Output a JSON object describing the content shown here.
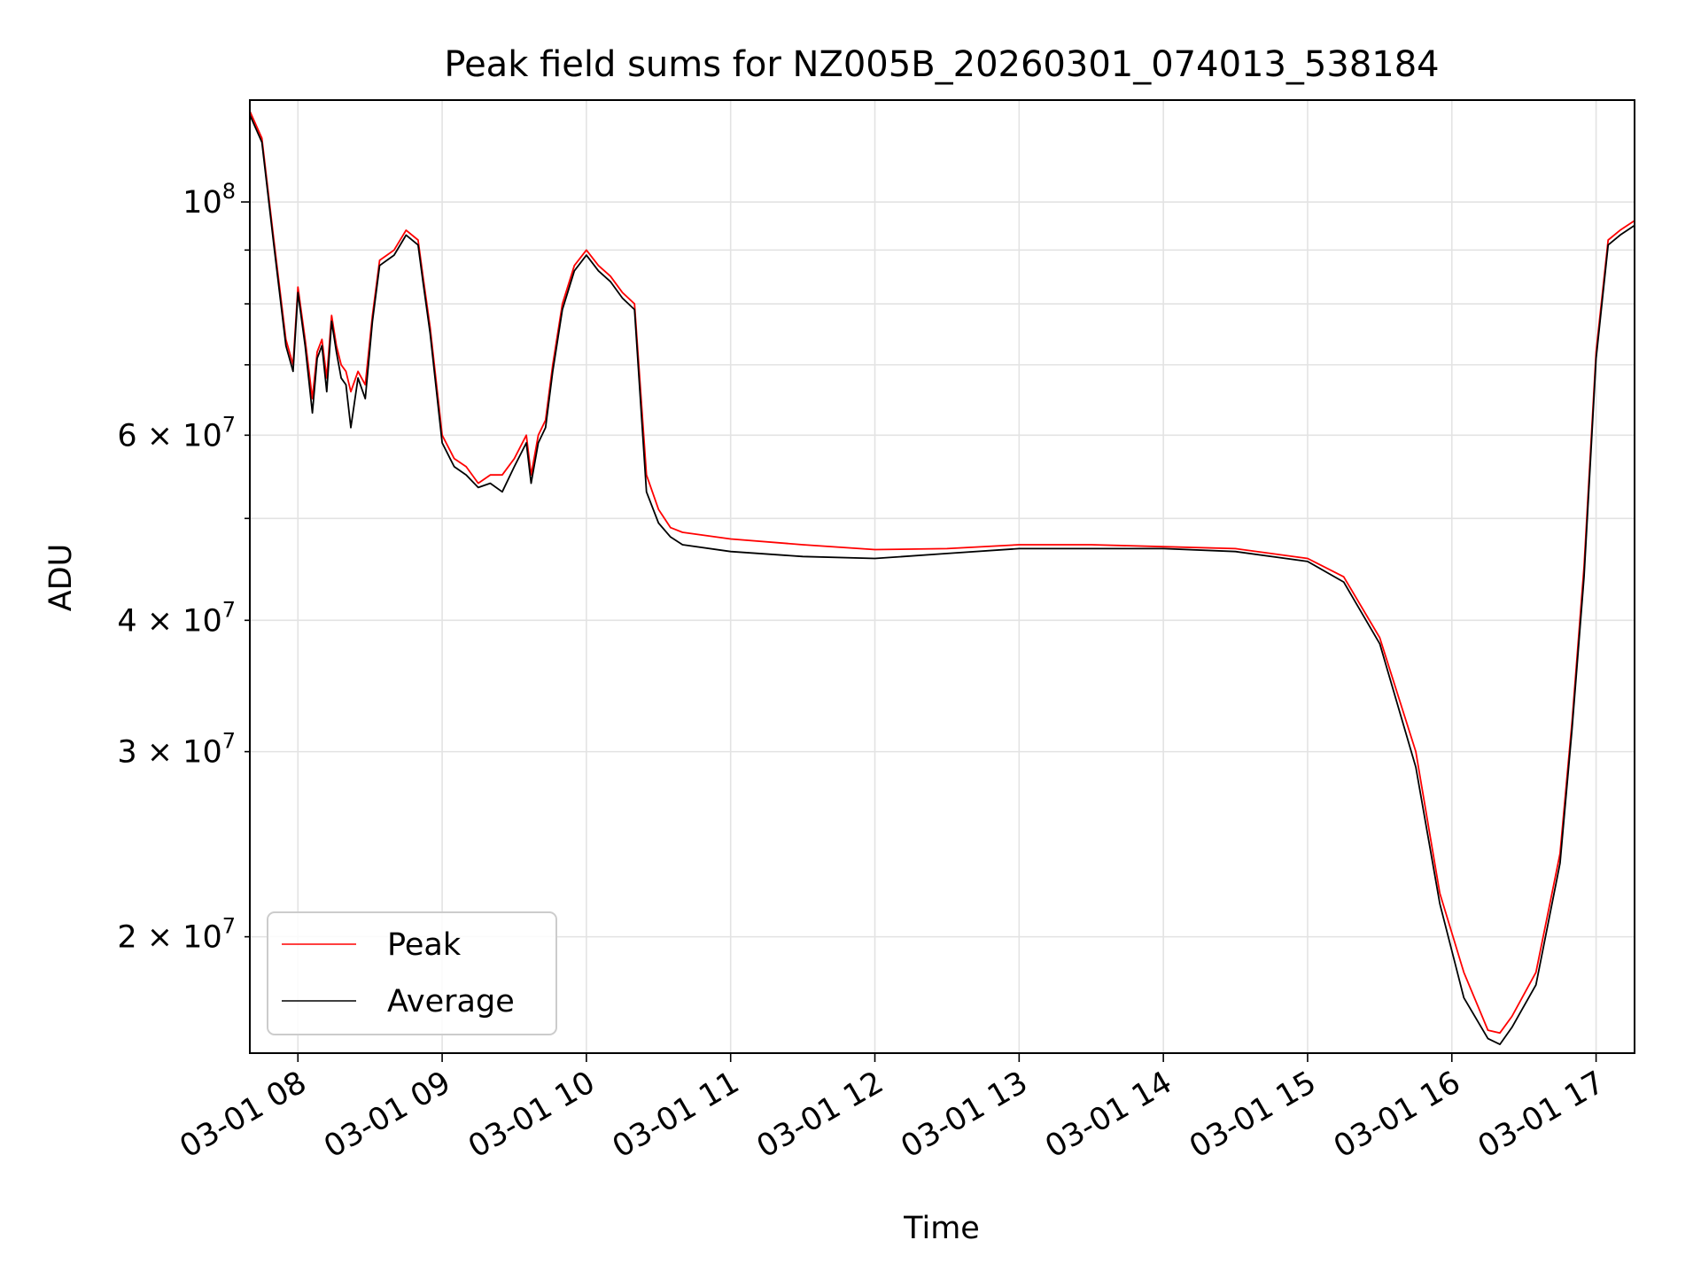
{
  "chart_data": {
    "type": "line",
    "title": "Peak field sums for NZ005B_20260301_074013_538184",
    "xlabel": "Time",
    "ylabel": "ADU",
    "x_scale": "time",
    "y_scale": "log",
    "xlim": [
      "2026-03-01 07:40",
      "2026-03-01 17:16"
    ],
    "ylim": [
      15500000,
      125000000
    ],
    "x_ticks": [
      "2026-03-01 08:00",
      "2026-03-01 09:00",
      "2026-03-01 10:00",
      "2026-03-01 11:00",
      "2026-03-01 12:00",
      "2026-03-01 13:00",
      "2026-03-01 14:00",
      "2026-03-01 15:00",
      "2026-03-01 16:00",
      "2026-03-01 17:00"
    ],
    "x_tick_labels": [
      "03-01 08",
      "03-01 09",
      "03-01 10",
      "03-01 11",
      "03-01 12",
      "03-01 13",
      "03-01 14",
      "03-01 15",
      "03-01 16",
      "03-01 17"
    ],
    "y_major_ticks": [
      100000000
    ],
    "y_major_labels": [
      [
        "10",
        "8"
      ]
    ],
    "y_minor_ticks": [
      20000000,
      30000000,
      40000000,
      60000000
    ],
    "y_minor_labels": [
      [
        "2 × 10",
        "7"
      ],
      [
        "3 × 10",
        "7"
      ],
      [
        "4 × 10",
        "7"
      ],
      [
        "6 × 10",
        "7"
      ]
    ],
    "y_grid_extra": [
      50000000,
      70000000,
      80000000,
      90000000
    ],
    "grid": true,
    "legend_position": "lower-left",
    "series": [
      {
        "name": "Peak",
        "color": "#ff0000",
        "x": [
          "2026-03-01 07:40",
          "2026-03-01 07:45",
          "2026-03-01 07:50",
          "2026-03-01 07:55",
          "2026-03-01 07:58",
          "2026-03-01 08:00",
          "2026-03-01 08:03",
          "2026-03-01 08:06",
          "2026-03-01 08:08",
          "2026-03-01 08:10",
          "2026-03-01 08:12",
          "2026-03-01 08:14",
          "2026-03-01 08:16",
          "2026-03-01 08:18",
          "2026-03-01 08:20",
          "2026-03-01 08:22",
          "2026-03-01 08:25",
          "2026-03-01 08:28",
          "2026-03-01 08:31",
          "2026-03-01 08:34",
          "2026-03-01 08:37",
          "2026-03-01 08:40",
          "2026-03-01 08:45",
          "2026-03-01 08:50",
          "2026-03-01 08:52",
          "2026-03-01 08:55",
          "2026-03-01 09:00",
          "2026-03-01 09:05",
          "2026-03-01 09:10",
          "2026-03-01 09:15",
          "2026-03-01 09:20",
          "2026-03-01 09:25",
          "2026-03-01 09:30",
          "2026-03-01 09:35",
          "2026-03-01 09:37",
          "2026-03-01 09:40",
          "2026-03-01 09:43",
          "2026-03-01 09:46",
          "2026-03-01 09:50",
          "2026-03-01 09:55",
          "2026-03-01 10:00",
          "2026-03-01 10:05",
          "2026-03-01 10:10",
          "2026-03-01 10:15",
          "2026-03-01 10:20",
          "2026-03-01 10:25",
          "2026-03-01 10:30",
          "2026-03-01 10:35",
          "2026-03-01 10:40",
          "2026-03-01 11:00",
          "2026-03-01 11:30",
          "2026-03-01 12:00",
          "2026-03-01 12:30",
          "2026-03-01 13:00",
          "2026-03-01 13:30",
          "2026-03-01 14:00",
          "2026-03-01 14:30",
          "2026-03-01 15:00",
          "2026-03-01 15:15",
          "2026-03-01 15:30",
          "2026-03-01 15:45",
          "2026-03-01 15:55",
          "2026-03-01 16:05",
          "2026-03-01 16:15",
          "2026-03-01 16:20",
          "2026-03-01 16:25",
          "2026-03-01 16:35",
          "2026-03-01 16:45",
          "2026-03-01 16:50",
          "2026-03-01 16:55",
          "2026-03-01 17:00",
          "2026-03-01 17:05",
          "2026-03-01 17:10",
          "2026-03-01 17:16"
        ],
        "values": [
          122000000,
          115000000,
          92000000,
          74000000,
          70000000,
          83000000,
          74000000,
          65000000,
          72000000,
          74000000,
          68000000,
          78000000,
          73000000,
          70000000,
          69000000,
          66000000,
          69000000,
          67000000,
          78000000,
          88000000,
          89000000,
          90000000,
          94000000,
          92000000,
          85000000,
          76000000,
          60000000,
          57000000,
          56000000,
          54000000,
          55000000,
          55000000,
          57000000,
          60000000,
          55000000,
          60000000,
          62000000,
          70000000,
          80000000,
          87000000,
          90000000,
          87000000,
          85000000,
          82000000,
          80000000,
          55000000,
          51000000,
          49000000,
          48500000,
          47800000,
          47200000,
          46700000,
          46800000,
          47200000,
          47200000,
          47000000,
          46800000,
          45800000,
          44000000,
          38500000,
          30000000,
          22000000,
          18500000,
          16300000,
          16200000,
          16800000,
          18500000,
          24000000,
          32000000,
          45000000,
          72000000,
          92000000,
          94000000,
          96000000
        ]
      },
      {
        "name": "Average",
        "color": "#000000",
        "x": [
          "2026-03-01 07:40",
          "2026-03-01 07:45",
          "2026-03-01 07:50",
          "2026-03-01 07:55",
          "2026-03-01 07:58",
          "2026-03-01 08:00",
          "2026-03-01 08:03",
          "2026-03-01 08:06",
          "2026-03-01 08:08",
          "2026-03-01 08:10",
          "2026-03-01 08:12",
          "2026-03-01 08:14",
          "2026-03-01 08:16",
          "2026-03-01 08:18",
          "2026-03-01 08:20",
          "2026-03-01 08:22",
          "2026-03-01 08:25",
          "2026-03-01 08:28",
          "2026-03-01 08:31",
          "2026-03-01 08:34",
          "2026-03-01 08:37",
          "2026-03-01 08:40",
          "2026-03-01 08:45",
          "2026-03-01 08:50",
          "2026-03-01 08:52",
          "2026-03-01 08:55",
          "2026-03-01 09:00",
          "2026-03-01 09:05",
          "2026-03-01 09:10",
          "2026-03-01 09:15",
          "2026-03-01 09:20",
          "2026-03-01 09:25",
          "2026-03-01 09:30",
          "2026-03-01 09:35",
          "2026-03-01 09:37",
          "2026-03-01 09:40",
          "2026-03-01 09:43",
          "2026-03-01 09:46",
          "2026-03-01 09:50",
          "2026-03-01 09:55",
          "2026-03-01 10:00",
          "2026-03-01 10:05",
          "2026-03-01 10:10",
          "2026-03-01 10:15",
          "2026-03-01 10:20",
          "2026-03-01 10:25",
          "2026-03-01 10:30",
          "2026-03-01 10:35",
          "2026-03-01 10:40",
          "2026-03-01 11:00",
          "2026-03-01 11:30",
          "2026-03-01 12:00",
          "2026-03-01 12:30",
          "2026-03-01 13:00",
          "2026-03-01 13:30",
          "2026-03-01 14:00",
          "2026-03-01 14:30",
          "2026-03-01 15:00",
          "2026-03-01 15:15",
          "2026-03-01 15:30",
          "2026-03-01 15:45",
          "2026-03-01 15:55",
          "2026-03-01 16:05",
          "2026-03-01 16:15",
          "2026-03-01 16:20",
          "2026-03-01 16:25",
          "2026-03-01 16:35",
          "2026-03-01 16:45",
          "2026-03-01 16:50",
          "2026-03-01 16:55",
          "2026-03-01 17:00",
          "2026-03-01 17:05",
          "2026-03-01 17:10",
          "2026-03-01 17:16"
        ],
        "values": [
          121000000,
          114000000,
          91000000,
          73000000,
          69000000,
          82000000,
          73000000,
          63000000,
          71000000,
          73000000,
          66000000,
          77000000,
          72000000,
          68000000,
          67000000,
          61000000,
          68000000,
          65000000,
          77000000,
          87000000,
          88000000,
          89000000,
          93000000,
          91000000,
          84000000,
          75000000,
          59000000,
          56000000,
          55000000,
          53500000,
          54000000,
          53000000,
          56000000,
          59000000,
          54000000,
          59000000,
          61000000,
          69000000,
          79000000,
          86000000,
          89000000,
          86000000,
          84000000,
          81000000,
          79000000,
          53000000,
          49500000,
          48000000,
          47200000,
          46500000,
          46000000,
          45800000,
          46300000,
          46800000,
          46800000,
          46800000,
          46500000,
          45500000,
          43500000,
          38000000,
          29000000,
          21500000,
          17500000,
          16000000,
          15800000,
          16400000,
          18000000,
          23500000,
          31500000,
          44000000,
          71000000,
          91000000,
          93000000,
          95000000
        ]
      }
    ]
  }
}
